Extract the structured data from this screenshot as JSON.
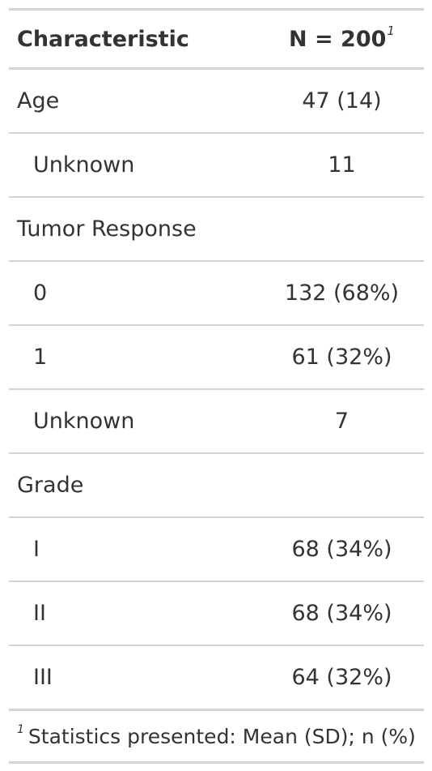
{
  "header": {
    "label": "Characteristic",
    "stat": "N = 200",
    "stat_footnote_mark": "1"
  },
  "rows": [
    {
      "label": "Age",
      "stat": "47 (14)",
      "indent": false
    },
    {
      "label": "Unknown",
      "stat": "11",
      "indent": true
    },
    {
      "label": "Tumor Response",
      "stat": "",
      "indent": false
    },
    {
      "label": "0",
      "stat": "132 (68%)",
      "indent": true
    },
    {
      "label": "1",
      "stat": "61 (32%)",
      "indent": true
    },
    {
      "label": "Unknown",
      "stat": "7",
      "indent": true
    },
    {
      "label": "Grade",
      "stat": "",
      "indent": false
    },
    {
      "label": "I",
      "stat": "68 (34%)",
      "indent": true
    },
    {
      "label": "II",
      "stat": "68 (34%)",
      "indent": true
    },
    {
      "label": "III",
      "stat": "64 (32%)",
      "indent": true
    }
  ],
  "footnote": {
    "mark": "1",
    "text": "Statistics presented: Mean (SD); n (%)"
  }
}
